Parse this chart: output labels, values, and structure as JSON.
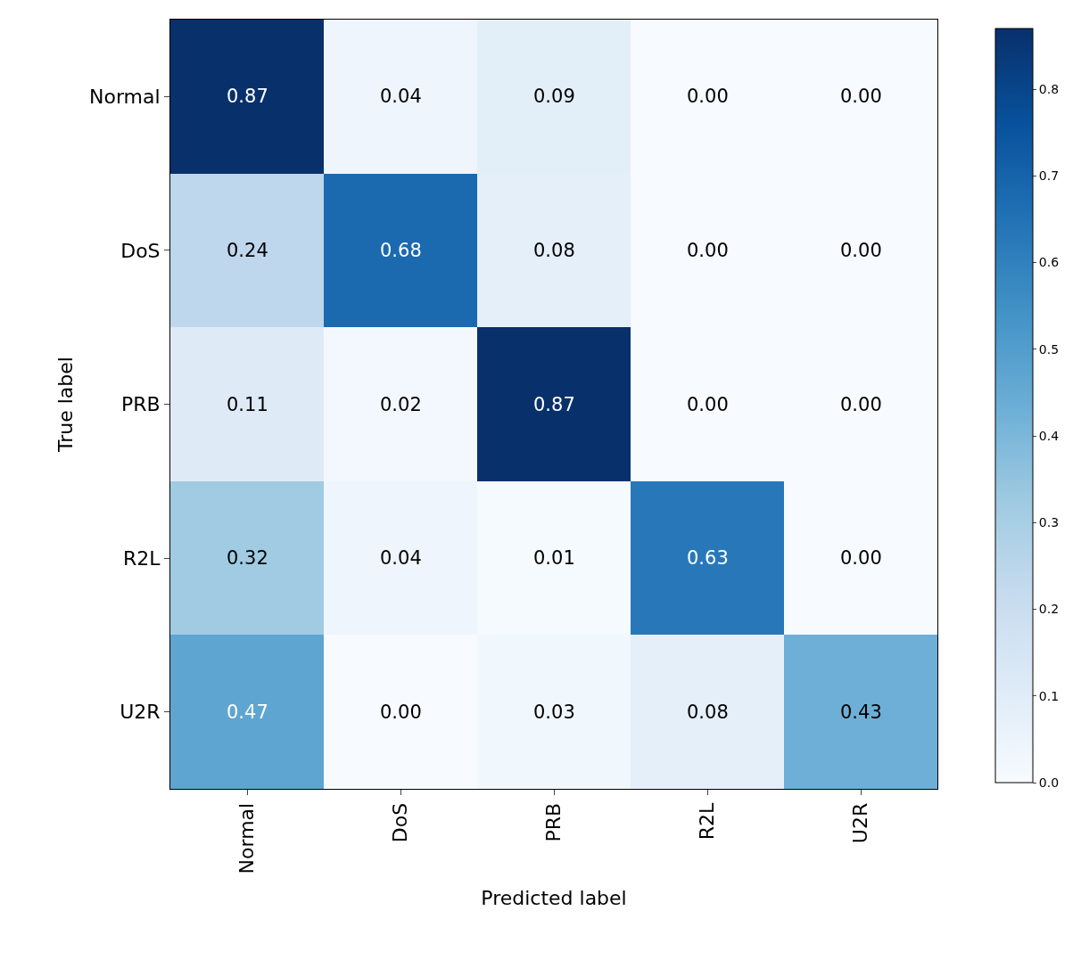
{
  "chart_data": {
    "type": "heatmap",
    "xlabel": "Predicted label",
    "ylabel": "True label",
    "categories": [
      "Normal",
      "DoS",
      "PRB",
      "R2L",
      "U2R"
    ],
    "y_categories": [
      "Normal",
      "DoS",
      "PRB",
      "R2L",
      "U2R"
    ],
    "cells": [
      [
        0.87,
        0.04,
        0.09,
        0.0,
        0.0
      ],
      [
        0.24,
        0.68,
        0.08,
        0.0,
        0.0
      ],
      [
        0.11,
        0.02,
        0.87,
        0.0,
        0.0
      ],
      [
        0.32,
        0.04,
        0.01,
        0.63,
        0.0
      ],
      [
        0.47,
        0.0,
        0.03,
        0.08,
        0.43
      ]
    ],
    "cell_labels": [
      [
        "0.87",
        "0.04",
        "0.09",
        "0.00",
        "0.00"
      ],
      [
        "0.24",
        "0.68",
        "0.08",
        "0.00",
        "0.00"
      ],
      [
        "0.11",
        "0.02",
        "0.87",
        "0.00",
        "0.00"
      ],
      [
        "0.32",
        "0.04",
        "0.01",
        "0.63",
        "0.00"
      ],
      [
        "0.47",
        "0.00",
        "0.03",
        "0.08",
        "0.43"
      ]
    ],
    "clim": [
      0,
      0.87
    ],
    "cticks": [
      {
        "value": 0,
        "label": "0.0"
      },
      {
        "value": 0.1,
        "label": "0.1"
      },
      {
        "value": 0.2,
        "label": "0.2"
      },
      {
        "value": 0.3,
        "label": "0.3"
      },
      {
        "value": 0.4,
        "label": "0.4"
      },
      {
        "value": 0.5,
        "label": "0.5"
      },
      {
        "value": 0.6,
        "label": "0.6"
      },
      {
        "value": 0.7,
        "label": "0.7"
      },
      {
        "value": 0.8,
        "label": "0.8"
      }
    ]
  }
}
